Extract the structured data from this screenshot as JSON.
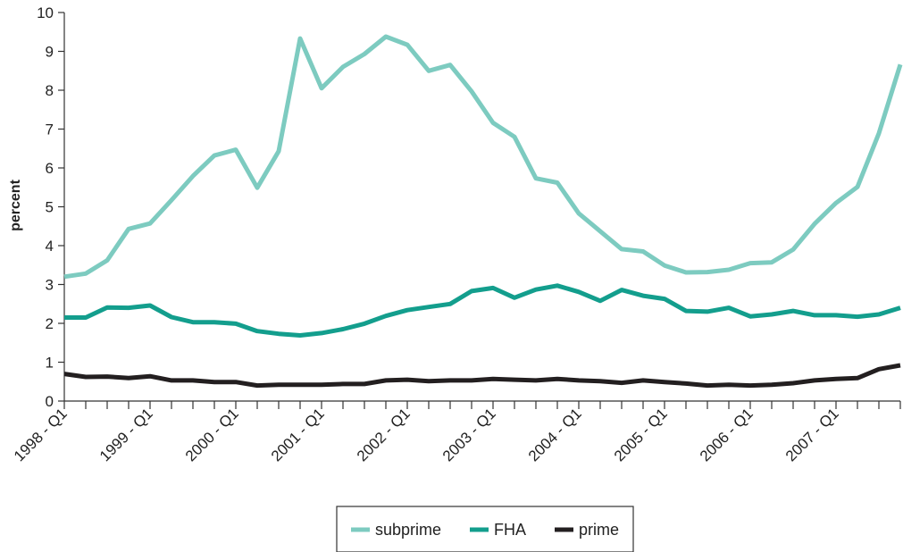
{
  "chart_data": {
    "type": "line",
    "title": "",
    "xlabel": "",
    "ylabel": "percent",
    "ylim": [
      0,
      10
    ],
    "yticks": [
      0,
      1,
      2,
      3,
      4,
      5,
      6,
      7,
      8,
      9,
      10
    ],
    "grid": false,
    "legend_position": "bottom-center",
    "x_labels": [
      "1998 - Q1",
      "1999 - Q1",
      "2000 - Q1",
      "2001 - Q1",
      "2002 - Q1",
      "2003 - Q1",
      "2004 - Q1",
      "2005 - Q1",
      "2006 - Q1",
      "2007 - Q1"
    ],
    "quarters_per_label": 4,
    "series": [
      {
        "name": "subprime",
        "color": "#7dcbc0",
        "values": [
          3.2,
          3.28,
          3.62,
          4.43,
          4.57,
          5.17,
          5.79,
          6.32,
          6.47,
          5.49,
          6.43,
          9.33,
          8.05,
          8.6,
          8.93,
          9.38,
          9.17,
          8.5,
          8.65,
          7.97,
          7.16,
          6.8,
          5.73,
          5.62,
          4.83,
          4.37,
          3.91,
          3.85,
          3.49,
          3.31,
          3.32,
          3.38,
          3.55,
          3.57,
          3.9,
          4.56,
          5.1,
          5.51,
          6.89,
          8.66
        ]
      },
      {
        "name": "FHA",
        "color": "#139e8d",
        "values": [
          2.15,
          2.15,
          2.41,
          2.4,
          2.46,
          2.16,
          2.03,
          2.03,
          1.99,
          1.8,
          1.73,
          1.69,
          1.75,
          1.85,
          1.99,
          2.19,
          2.34,
          2.42,
          2.5,
          2.83,
          2.91,
          2.66,
          2.87,
          2.97,
          2.81,
          2.58,
          2.86,
          2.71,
          2.63,
          2.32,
          2.3,
          2.4,
          2.18,
          2.23,
          2.32,
          2.21,
          2.21,
          2.17,
          2.23,
          2.4
        ]
      },
      {
        "name": "prime",
        "color": "#231f20",
        "values": [
          0.7,
          0.62,
          0.63,
          0.59,
          0.64,
          0.53,
          0.53,
          0.49,
          0.49,
          0.4,
          0.42,
          0.42,
          0.42,
          0.44,
          0.44,
          0.53,
          0.55,
          0.51,
          0.53,
          0.53,
          0.57,
          0.55,
          0.53,
          0.57,
          0.53,
          0.51,
          0.47,
          0.53,
          0.49,
          0.45,
          0.4,
          0.42,
          0.4,
          0.42,
          0.46,
          0.53,
          0.57,
          0.59,
          0.82,
          0.92
        ]
      }
    ]
  }
}
